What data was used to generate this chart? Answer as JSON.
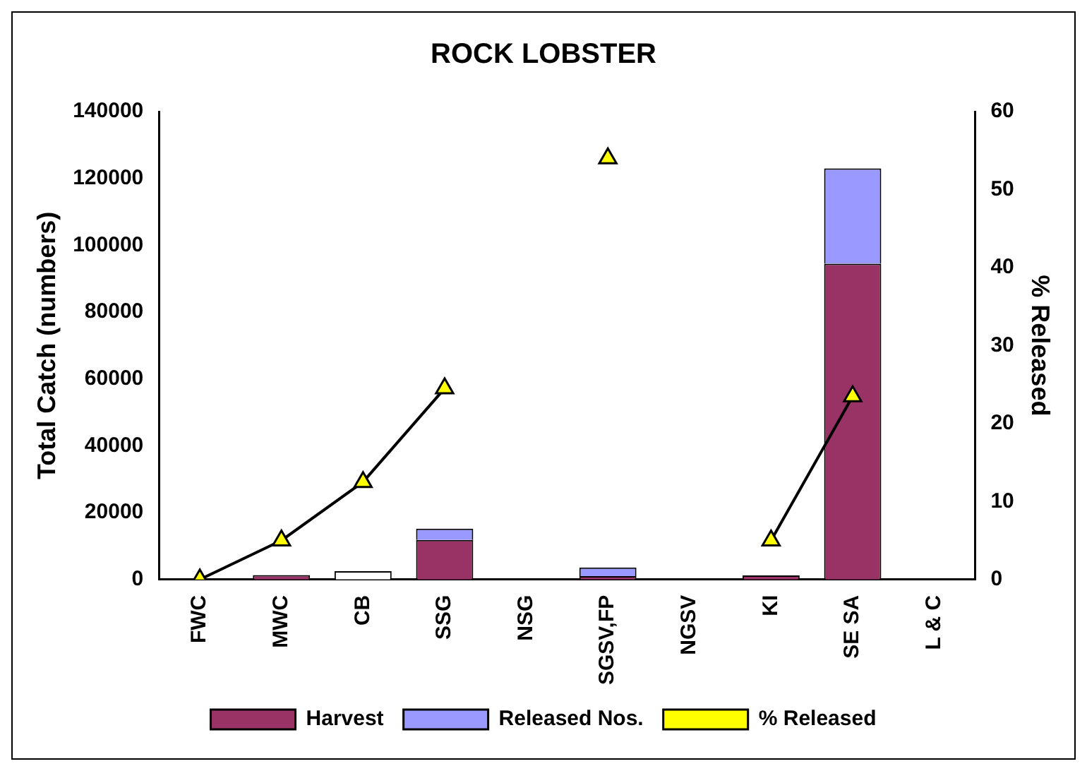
{
  "chart_data": {
    "type": "bar",
    "title": "ROCK LOBSTER",
    "ylabel": "Total Catch (numbers)",
    "y2label": "% Released",
    "categories": [
      "FWC",
      "MWC",
      "CB",
      "SSG",
      "NSG",
      "SGSV,FP",
      "NGSV",
      "KI",
      "SE SA",
      "L & C"
    ],
    "stacked": true,
    "series": [
      {
        "name": "Harvest",
        "color": "#993366",
        "values": [
          0,
          1300,
          0,
          11800,
          0,
          1000,
          0,
          1200,
          94500,
          0
        ]
      },
      {
        "name": "Released Nos.",
        "color": "#9999ff",
        "colors": [
          "#9999ff",
          "#9999ff",
          "#ffffff",
          "#9999ff",
          "#9999ff",
          "#9999ff",
          "#9999ff",
          "#9999ff",
          "#9999ff",
          "#9999ff"
        ],
        "values": [
          0,
          0,
          2500,
          3400,
          0,
          2600,
          0,
          0,
          28500,
          0
        ]
      },
      {
        "name": "% Released",
        "type": "line",
        "axis": "y2",
        "color": "#000000",
        "marker": "triangle",
        "values": [
          0,
          5,
          12.5,
          24.5,
          null,
          54,
          null,
          5,
          23.5,
          null
        ]
      }
    ],
    "ylim": [
      0,
      140000
    ],
    "yticks": [
      0,
      20000,
      40000,
      60000,
      80000,
      100000,
      120000,
      140000
    ],
    "y2lim": [
      0,
      60
    ],
    "y2ticks": [
      0,
      10,
      20,
      30,
      40,
      50,
      60
    ],
    "grid": false,
    "legend": "bottom"
  }
}
